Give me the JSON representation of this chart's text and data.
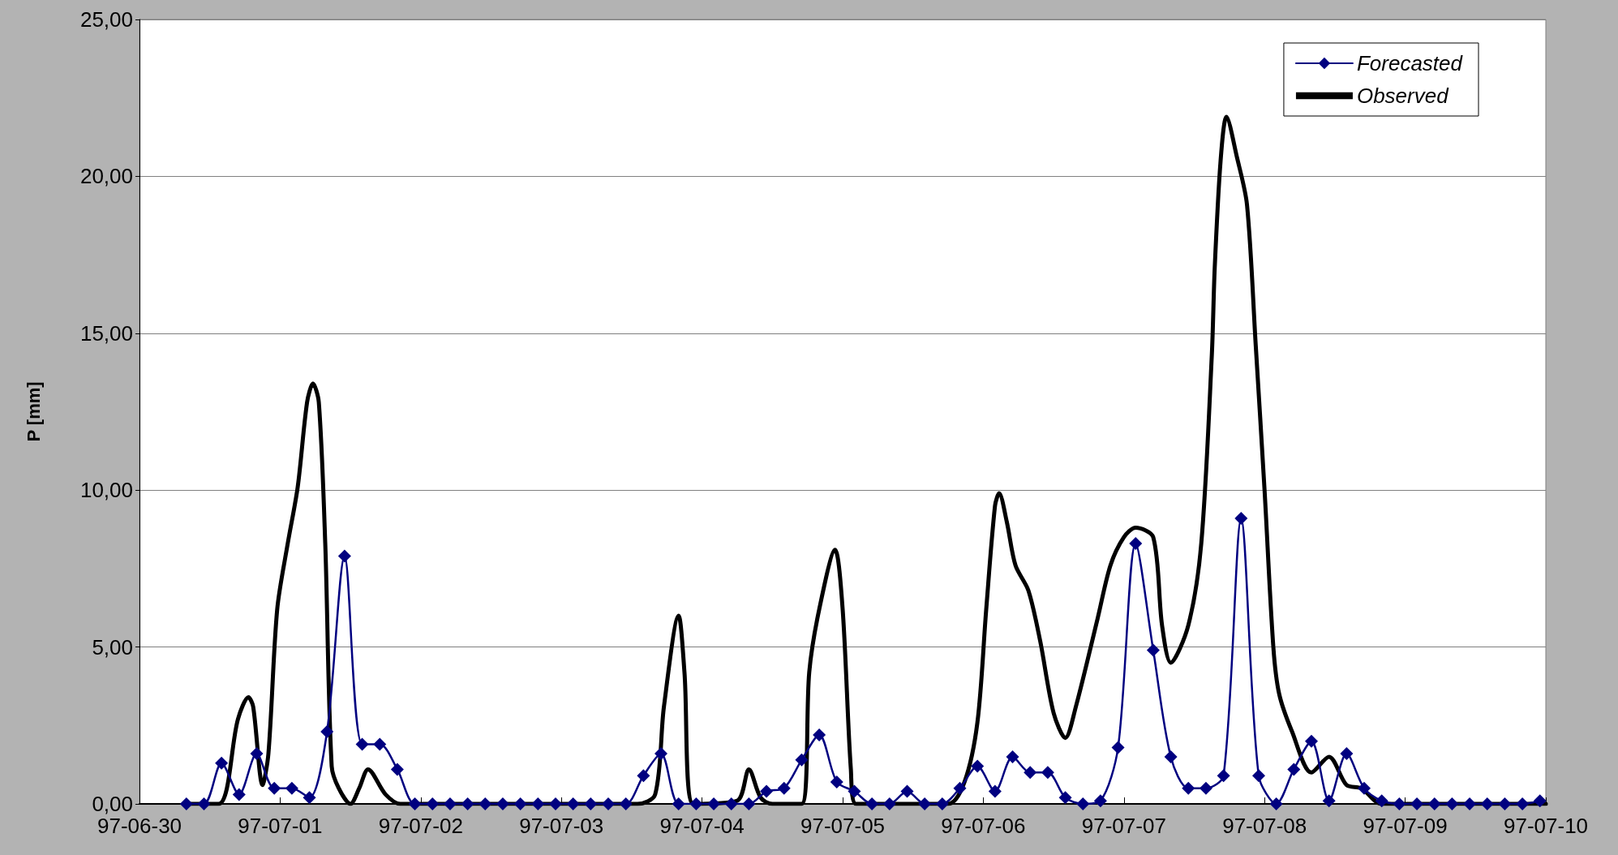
{
  "chart_data": {
    "type": "line",
    "ylabel": "P [mm]",
    "xlim": [
      "--06-30",
      "--07-10"
    ],
    "xticks": [
      {
        "value": "--06-30",
        "label": "97-06-30"
      },
      {
        "value": "--07-01",
        "label": "97-07-01"
      },
      {
        "value": "--07-02",
        "label": "97-07-02"
      },
      {
        "value": "--07-03",
        "label": "97-07-03"
      },
      {
        "value": "--07-04",
        "label": "97-07-04"
      },
      {
        "value": "--07-05",
        "label": "97-07-05"
      },
      {
        "value": "--07-06",
        "label": "97-07-06"
      },
      {
        "value": "--07-07",
        "label": "97-07-07"
      },
      {
        "value": "--07-08",
        "label": "97-07-08"
      },
      {
        "value": "--07-09",
        "label": "97-07-09"
      },
      {
        "value": "--07-10",
        "label": "97-07-10"
      }
    ],
    "ylim": [
      0,
      25
    ],
    "yticks": [
      {
        "value": 0,
        "label": "0,00"
      },
      {
        "value": 5,
        "label": "5,00"
      },
      {
        "value": 10,
        "label": "10,00"
      },
      {
        "value": 15,
        "label": "15,00"
      },
      {
        "value": 20,
        "label": "20,00"
      },
      {
        "value": 25,
        "label": "25,00"
      }
    ],
    "grid": "y",
    "legend": "top right",
    "series": [
      {
        "name": "Forecasted",
        "color": "#000080",
        "marker": "diamond",
        "x": [
          "--06-30T08:00",
          "--06-30T11:00",
          "--06-30T14:00",
          "--06-30T17:00",
          "--06-30T20:00",
          "--06-30T23:00",
          "--07-01T02:00",
          "--07-01T05:00",
          "--07-01T08:00",
          "--07-01T11:00",
          "--07-01T14:00",
          "--07-01T17:00",
          "--07-01T20:00",
          "--07-01T23:00",
          "--07-02T02:00",
          "--07-02T05:00",
          "--07-02T08:00",
          "--07-02T11:00",
          "--07-02T14:00",
          "--07-02T17:00",
          "--07-02T20:00",
          "--07-02T23:00",
          "--07-03T02:00",
          "--07-03T05:00",
          "--07-03T08:00",
          "--07-03T11:00",
          "--07-03T14:00",
          "--07-03T17:00",
          "--07-03T20:00",
          "--07-03T23:00",
          "--07-04T02:00",
          "--07-04T05:00",
          "--07-04T08:00",
          "--07-04T11:00",
          "--07-04T14:00",
          "--07-04T17:00",
          "--07-04T20:00",
          "--07-04T23:00",
          "--07-05T02:00",
          "--07-05T05:00",
          "--07-05T08:00",
          "--07-05T11:00",
          "--07-05T14:00",
          "--07-05T17:00",
          "--07-05T20:00",
          "--07-05T23:00",
          "--07-06T02:00",
          "--07-06T05:00",
          "--07-06T08:00",
          "--07-06T11:00",
          "--07-06T14:00",
          "--07-06T17:00",
          "--07-06T20:00",
          "--07-06T23:00",
          "--07-07T02:00",
          "--07-07T05:00",
          "--07-07T08:00",
          "--07-07T11:00",
          "--07-07T14:00",
          "--07-07T17:00",
          "--07-07T20:00",
          "--07-07T23:00",
          "--07-08T02:00",
          "--07-08T05:00",
          "--07-08T08:00",
          "--07-08T11:00",
          "--07-08T14:00",
          "--07-08T17:00",
          "--07-08T20:00",
          "--07-08T23:00",
          "--07-09T02:00",
          "--07-09T05:00",
          "--07-09T08:00",
          "--07-09T11:00",
          "--07-09T14:00",
          "--07-09T17:00",
          "--07-09T20:00",
          "--07-09T23:00"
        ],
        "values": [
          0,
          0,
          1.3,
          0.3,
          1.6,
          0.5,
          0.5,
          0.2,
          2.3,
          7.9,
          1.9,
          1.9,
          1.1,
          0,
          0,
          0,
          0,
          0,
          0,
          0,
          0,
          0,
          0,
          0,
          0,
          0,
          0.9,
          1.6,
          0,
          0,
          0,
          0,
          0,
          0.4,
          0.5,
          1.4,
          2.2,
          0.7,
          0.4,
          0,
          0,
          0.4,
          0,
          0,
          0.5,
          1.2,
          0.4,
          1.5,
          1,
          1,
          0.2,
          0,
          0.1,
          1.8,
          8.3,
          4.9,
          1.5,
          0.5,
          0.5,
          0.9,
          9.1,
          0.9,
          0,
          1.1,
          2,
          0.1,
          1.6,
          0.5,
          0.1,
          0,
          0,
          0,
          0,
          0,
          0,
          0,
          0,
          0.1
        ]
      },
      {
        "name": "Observed",
        "color": "#000000",
        "marker": "none",
        "x": [
          "--06-30T08:00",
          "--06-30T13:30",
          "--06-30T16:48",
          "--06-30T18:36",
          "--06-30T19:24",
          "--06-30T21:00",
          "--06-30T22:00",
          "--06-30T23:30",
          "--07-01T01:18",
          "--07-01T03:00",
          "--07-01T04:36",
          "--07-01T05:36",
          "--07-01T06:36",
          "--07-01T07:42",
          "--07-01T08:48",
          "--07-01T10:00",
          "--07-01T12:00",
          "--07-01T13:30",
          "--07-01T15:00",
          "--07-01T18:00",
          "--07-01T20:30",
          "--07-03T13:00",
          "--07-03T16:00",
          "--07-03T17:30",
          "--07-03T20:00",
          "--07-03T21:00",
          "--07-03T22:30",
          "--07-04T06:00",
          "--07-04T08:00",
          "--07-04T10:00",
          "--07-04T12:00",
          "--07-04T17:00",
          "--07-04T18:18",
          "--07-04T20:00",
          "--07-04T22:42",
          "--07-05T00:00",
          "--07-05T01:24",
          "--07-05T02:18",
          "--07-05T18:00",
          "--07-05T20:48",
          "--07-05T23:00",
          "--07-06T00:30",
          "--07-06T02:00",
          "--07-06T02:42",
          "--07-06T04:00",
          "--07-06T05:30",
          "--07-06T07:42",
          "--07-06T09:42",
          "--07-06T12:00",
          "--07-06T14:00",
          "--07-06T15:48",
          "--07-06T19:30",
          "--07-06T21:42",
          "--07-07T00:00",
          "--07-07T02:00",
          "--07-07T05:00",
          "--07-07T06:30",
          "--07-07T08:00",
          "--07-07T11:00",
          "--07-07T13:12",
          "--07-07T15:00",
          "--07-07T15:30",
          "--07-07T16:30",
          "--07-07T17:30",
          "--07-07T19:18",
          "--07-07T21:00",
          "--07-07T22:30",
          "--07-08T00:00",
          "--07-08T01:30",
          "--07-08T02:30",
          "--07-08T04:42",
          "--07-08T08:00",
          "--07-08T11:00",
          "--07-08T14:00",
          "--07-08T16:30",
          "--07-08T20:00",
          "--07-10T00:00"
        ],
        "values": [
          0,
          0,
          2.7,
          3.4,
          3.1,
          0.6,
          1.6,
          6.2,
          8.3,
          10.1,
          12.8,
          13.4,
          12.8,
          8.3,
          1.2,
          0.5,
          0,
          0.5,
          1.1,
          0.3,
          0,
          0,
          0.3,
          3.1,
          6,
          4.2,
          0,
          0.1,
          1.1,
          0.2,
          0,
          0,
          4.2,
          6.2,
          8.1,
          6.2,
          1.1,
          0,
          0,
          0.7,
          2.6,
          6.2,
          9.5,
          9.9,
          9,
          7.6,
          6.8,
          5.2,
          2.9,
          2.1,
          3.1,
          5.9,
          7.6,
          8.5,
          8.8,
          8.5,
          5.7,
          4.5,
          5.7,
          8.3,
          14.3,
          17.1,
          20.5,
          21.9,
          20.6,
          19.1,
          14.6,
          10,
          5,
          3.5,
          2.3,
          1,
          1.5,
          0.6,
          0.5,
          0,
          0
        ]
      }
    ]
  }
}
